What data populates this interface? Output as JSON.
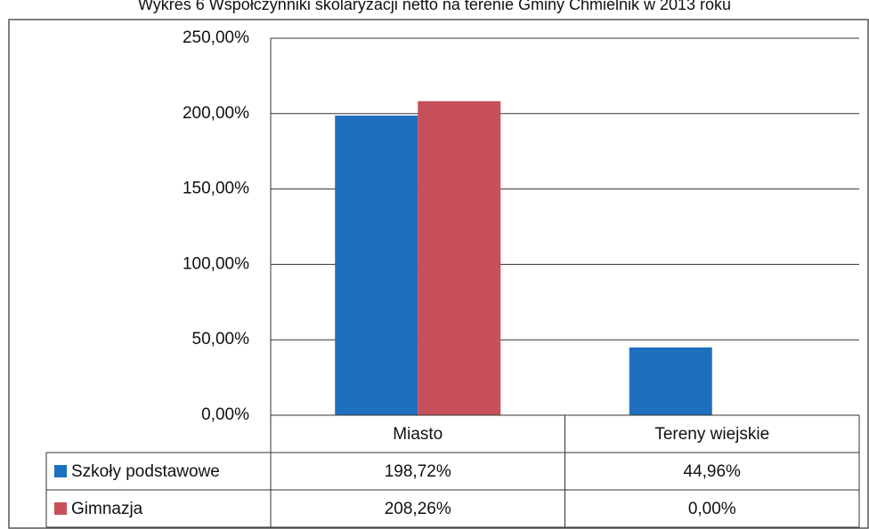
{
  "chart_data": {
    "type": "bar",
    "title": "Wykres 6 Współczynniki skolaryzacji netto na terenie Gminy Chmielnik w 2013 roku",
    "categories": [
      "Miasto",
      "Tereny wiejskie"
    ],
    "series": [
      {
        "name": "Szkoły podstawowe",
        "color": "#1f6fbf",
        "values": [
          198.72,
          44.96
        ],
        "value_labels": [
          "198,72%",
          "44,96%"
        ]
      },
      {
        "name": "Gimnazja",
        "color": "#c8505a",
        "values": [
          208.26,
          0
        ],
        "value_labels": [
          "208,26%",
          "0,00%"
        ]
      }
    ],
    "ylim": [
      0,
      250
    ],
    "yticks": [
      {
        "value": 0,
        "label": "0,00%"
      },
      {
        "value": 50,
        "label": "50,00%"
      },
      {
        "value": 100,
        "label": "100,00%"
      },
      {
        "value": 150,
        "label": "150,00%"
      },
      {
        "value": 200,
        "label": "200,00%"
      },
      {
        "value": 250,
        "label": "250,00%"
      }
    ],
    "grid": true
  }
}
